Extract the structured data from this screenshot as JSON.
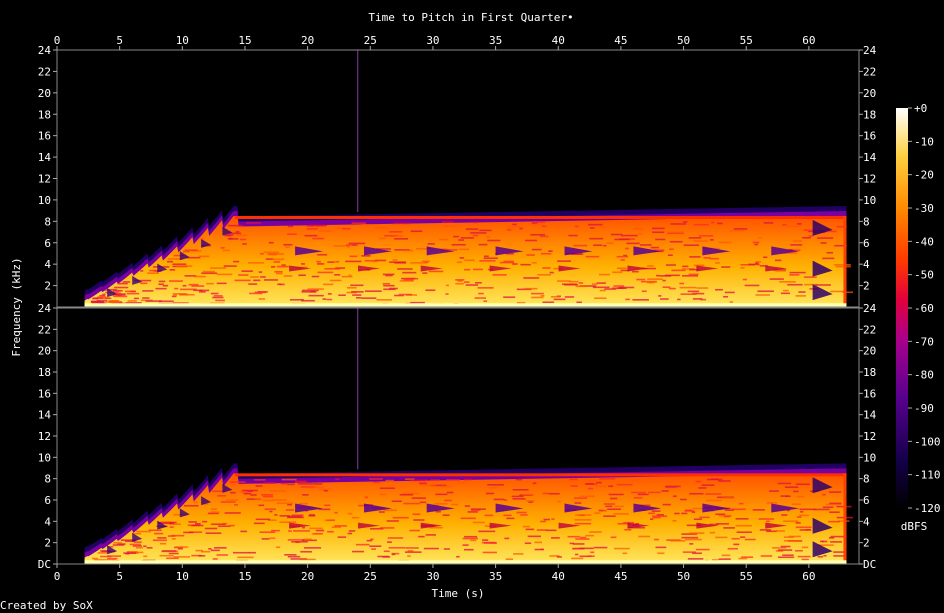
{
  "chart_data": {
    "type": "heatmap",
    "title": "Time to Pitch in First Quarter•",
    "xlabel": "Time (s)",
    "ylabel": "Frequency (kHz)",
    "xlim": [
      0,
      64
    ],
    "ylim_khz": [
      0,
      24
    ],
    "x_ticks": [
      "0",
      "5",
      "10",
      "15",
      "20",
      "25",
      "30",
      "35",
      "40",
      "45",
      "50",
      "55",
      "60"
    ],
    "y_ticks": [
      "DC",
      "2",
      "4",
      "6",
      "8",
      "10",
      "12",
      "14",
      "16",
      "18",
      "20",
      "22",
      "24"
    ],
    "channels": 2,
    "colorbar": {
      "unit": "dBFS",
      "range_db": [
        -120,
        0
      ],
      "ticks": [
        "+0",
        "-10",
        "-20",
        "-30",
        "-40",
        "-50",
        "-60",
        "-70",
        "-80",
        "-90",
        "-100",
        "-110",
        "-120"
      ]
    },
    "signal": {
      "onset_s": 2.2,
      "end_s": 63.0,
      "bandwidth_ramp_end_s": 14.5,
      "bandwidth_max_khz": 8.5,
      "marker_time_s": 24.0,
      "colors": [
        "#000000",
        "#2a0058",
        "#6a00a8",
        "#c0003c",
        "#ff2a00",
        "#ff8c00",
        "#ffe04a",
        "#ffffd8"
      ]
    },
    "credit": "Created by SoX"
  }
}
